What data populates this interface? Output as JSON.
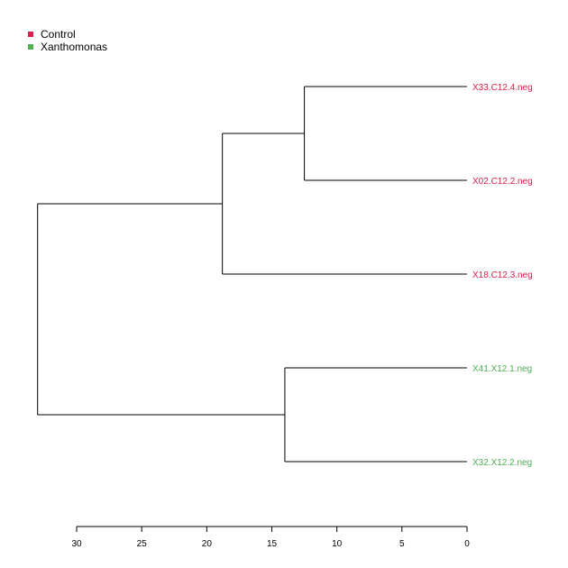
{
  "chart_data": {
    "type": "dendrogram",
    "orientation": "leaves-right",
    "axis": {
      "ticks": [
        30,
        25,
        20,
        15,
        10,
        5,
        0
      ],
      "range": [
        30,
        0
      ]
    },
    "legend": {
      "placement": "top-left",
      "entries": [
        {
          "label": "Control",
          "color": "#dc1e4a"
        },
        {
          "label": "Xanthomonas",
          "color": "#4caf50"
        }
      ]
    },
    "leaves": [
      {
        "label": "X33.C12.4.neg",
        "group": "Control"
      },
      {
        "label": "X02.C12.2.neg",
        "group": "Control"
      },
      {
        "label": "X18.C12.3.neg",
        "group": "Control"
      },
      {
        "label": "X41.X12.1.neg",
        "group": "Xanthomonas"
      },
      {
        "label": "X32.X12.2.neg",
        "group": "Xanthomonas"
      }
    ],
    "merges": [
      {
        "children": [
          "X33.C12.4.neg",
          "X02.C12.2.neg"
        ],
        "height": 12.5
      },
      {
        "children": [
          "merge-0",
          "X18.C12.3.neg"
        ],
        "height": 18.8
      },
      {
        "children": [
          "X41.X12.1.neg",
          "X32.X12.2.neg"
        ],
        "height": 14.0
      },
      {
        "children": [
          "merge-1",
          "merge-2"
        ],
        "height": 33.0
      }
    ]
  }
}
